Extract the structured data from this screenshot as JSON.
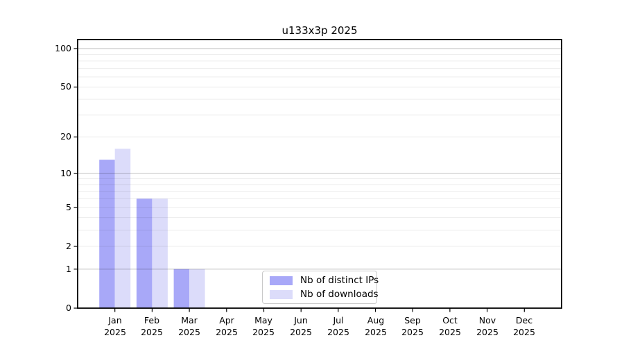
{
  "chart_data": {
    "type": "bar",
    "title": "u133x3p 2025",
    "categories": [
      "Jan 2025",
      "Feb 2025",
      "Mar 2025",
      "Apr 2025",
      "May 2025",
      "Jun 2025",
      "Jul 2025",
      "Aug 2025",
      "Sep 2025",
      "Oct 2025",
      "Nov 2025",
      "Dec 2025"
    ],
    "series": [
      {
        "name": "Nb of distinct IPs",
        "color": "#a8a8f8",
        "values": [
          13,
          6,
          1,
          0,
          0,
          0,
          0,
          0,
          0,
          0,
          0,
          0
        ]
      },
      {
        "name": "Nb of downloads",
        "color": "#dcdcfa",
        "values": [
          16,
          6,
          1,
          0,
          0,
          0,
          0,
          0,
          0,
          0,
          0,
          0
        ]
      }
    ],
    "y_axis": {
      "scale": "log10(1+x)",
      "tick_labels": [
        0,
        1,
        2,
        5,
        10,
        20,
        50,
        100
      ],
      "major_gridlines": [
        1,
        10,
        100
      ],
      "minor_gridlines": [
        2,
        3,
        4,
        5,
        6,
        7,
        8,
        9,
        20,
        30,
        40,
        50,
        60,
        70,
        80,
        90
      ],
      "ylim": [
        0,
        119
      ]
    },
    "legend_position": "lower center inside plot",
    "grid": true,
    "colors": {
      "axis": "#000000",
      "major_grid": "rgba(0,0,0,0.21)",
      "minor_grid": "rgba(0,0,0,0.075)",
      "background": "#ffffff"
    }
  }
}
